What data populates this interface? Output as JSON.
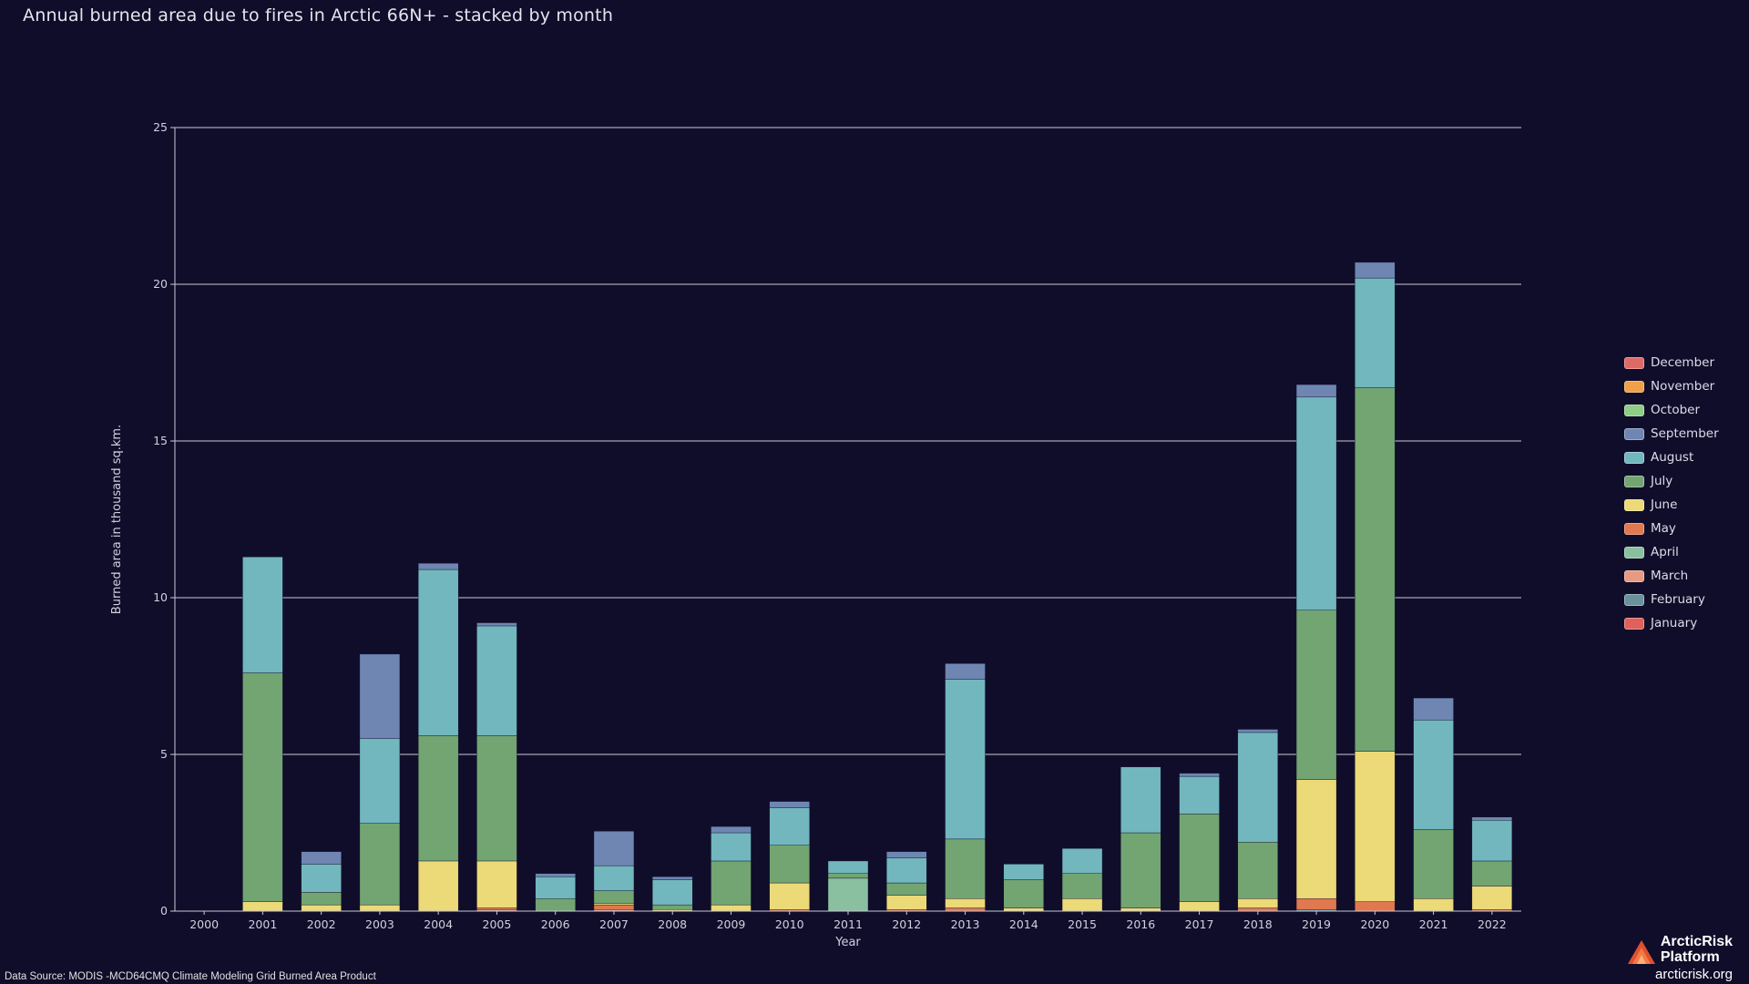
{
  "title": "Annual burned area due to fires in Arctic 66N+ - stacked by month",
  "source_note": "Data Source: MODIS -MCD64CMQ Climate Modeling Grid Burned Area Product",
  "brand": {
    "line1": "ArcticRisk",
    "line2": "Platform",
    "url": "arcticrisk.org"
  },
  "chart_data": {
    "type": "bar",
    "stacked": true,
    "title": "Annual burned area due to fires in Arctic 66N+ - stacked by month",
    "xlabel": "Year",
    "ylabel": "Burned area in thousand sq.km.",
    "ylim": [
      0,
      25
    ],
    "yticks": [
      0,
      5,
      10,
      15,
      20,
      25
    ],
    "grid": true,
    "legend_position": "right",
    "categories": [
      "2000",
      "2001",
      "2002",
      "2003",
      "2004",
      "2005",
      "2006",
      "2007",
      "2008",
      "2009",
      "2010",
      "2011",
      "2012",
      "2013",
      "2014",
      "2015",
      "2016",
      "2017",
      "2018",
      "2019",
      "2020",
      "2021",
      "2022"
    ],
    "series": [
      {
        "name": "January",
        "color": "#e0605a",
        "values": [
          0,
          0,
          0,
          0,
          0,
          0,
          0,
          0,
          0,
          0,
          0,
          0,
          0,
          0,
          0,
          0,
          0,
          0,
          0,
          0,
          0,
          0,
          0
        ]
      },
      {
        "name": "February",
        "color": "#6a929c",
        "values": [
          0,
          0,
          0,
          0,
          0,
          0,
          0,
          0,
          0,
          0,
          0,
          0,
          0,
          0,
          0,
          0,
          0,
          0,
          0,
          0.05,
          0,
          0,
          0
        ]
      },
      {
        "name": "March",
        "color": "#e69a82",
        "values": [
          0,
          0,
          0,
          0,
          0,
          0.05,
          0,
          0.05,
          0,
          0,
          0,
          0,
          0,
          0,
          0,
          0,
          0,
          0,
          0,
          0,
          0,
          0,
          0
        ]
      },
      {
        "name": "April",
        "color": "#8ac0a0",
        "values": [
          0,
          0,
          0,
          0,
          0,
          0,
          0,
          0,
          0,
          0,
          0,
          1.05,
          0,
          0,
          0,
          0,
          0,
          0,
          0,
          0,
          0,
          0,
          0
        ]
      },
      {
        "name": "May",
        "color": "#e07850",
        "values": [
          0,
          0,
          0,
          0,
          0,
          0.05,
          0,
          0.15,
          0,
          0,
          0.05,
          0,
          0.05,
          0.1,
          0,
          0,
          0,
          0,
          0.1,
          0.35,
          0.3,
          0,
          0.05
        ]
      },
      {
        "name": "June",
        "color": "#ecd977",
        "values": [
          0,
          0.3,
          0.2,
          0.2,
          1.6,
          1.5,
          0,
          0.05,
          0.05,
          0.2,
          0.85,
          0,
          0.45,
          0.3,
          0.1,
          0.4,
          0.1,
          0.3,
          0.3,
          3.8,
          4.8,
          0.4,
          0.75
        ]
      },
      {
        "name": "July",
        "color": "#72a572",
        "values": [
          0,
          7.3,
          0.4,
          2.6,
          4.0,
          4.0,
          0.4,
          0.4,
          0.15,
          1.4,
          1.2,
          0.15,
          0.4,
          1.9,
          0.9,
          0.8,
          2.4,
          2.8,
          1.8,
          5.4,
          11.6,
          2.2,
          0.8
        ]
      },
      {
        "name": "August",
        "color": "#72b7be",
        "values": [
          0,
          3.7,
          0.9,
          2.7,
          5.3,
          3.5,
          0.7,
          0.8,
          0.8,
          0.9,
          1.2,
          0.4,
          0.8,
          5.1,
          0.5,
          0.8,
          2.1,
          1.2,
          3.5,
          6.8,
          3.5,
          3.5,
          1.3
        ]
      },
      {
        "name": "September",
        "color": "#6f86b2",
        "values": [
          0,
          0,
          0.4,
          2.7,
          0.2,
          0.1,
          0.1,
          1.1,
          0.1,
          0.2,
          0.2,
          0,
          0.2,
          0.5,
          0,
          0,
          0,
          0.1,
          0.1,
          0.4,
          0.5,
          0.7,
          0.1
        ]
      },
      {
        "name": "October",
        "color": "#8fcc85",
        "values": [
          0,
          0,
          0,
          0,
          0,
          0,
          0,
          0,
          0,
          0,
          0,
          0,
          0,
          0,
          0,
          0,
          0,
          0,
          0,
          0,
          0,
          0,
          0
        ]
      },
      {
        "name": "November",
        "color": "#f0a048",
        "values": [
          0,
          0,
          0,
          0,
          0,
          0,
          0,
          0,
          0,
          0,
          0,
          0,
          0,
          0,
          0,
          0,
          0,
          0,
          0,
          0,
          0,
          0,
          0
        ]
      },
      {
        "name": "December",
        "color": "#de6a66",
        "values": [
          0,
          0,
          0,
          0,
          0,
          0,
          0,
          0,
          0,
          0,
          0,
          0,
          0,
          0,
          0,
          0,
          0,
          0,
          0,
          0,
          0,
          0,
          0
        ]
      }
    ]
  }
}
